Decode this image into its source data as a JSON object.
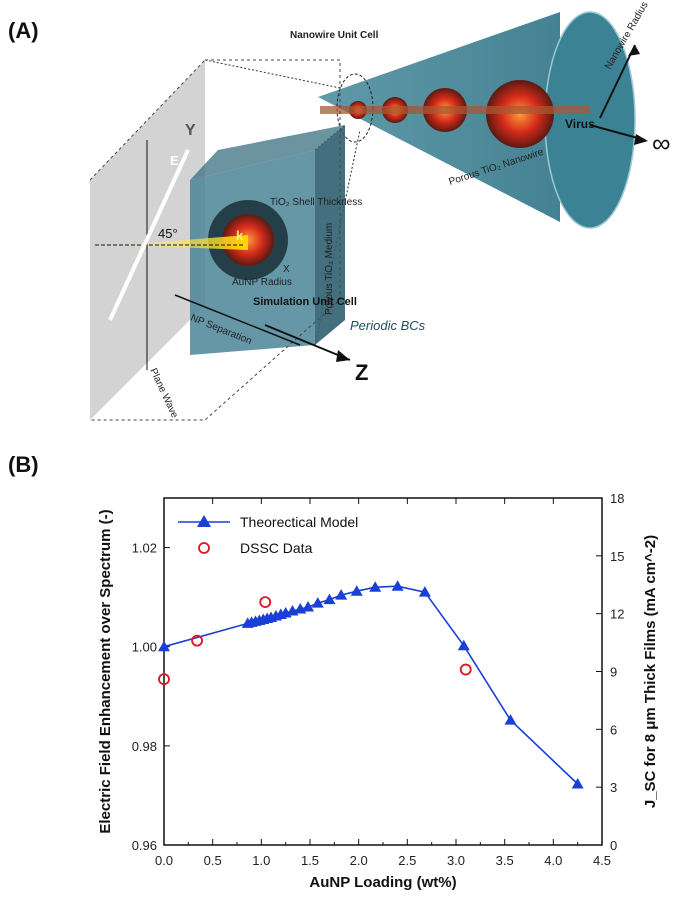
{
  "panels": {
    "a_label": "(A)",
    "b_label": "(B)"
  },
  "diagram": {
    "nanowire_unit_cell": "Nanowire Unit Cell",
    "nanowire_radius": "Nanowire Radius",
    "virus": "Virus",
    "infinity": "∞",
    "porous_nanowire": "Porous TiO₂ Nanowire",
    "shell_thickness": "TiO₂ Shell Thickness",
    "k": "k",
    "e": "E",
    "y": "Y",
    "x": "X",
    "angle": "45°",
    "aunp_radius": "AuNP Radius",
    "simulation_unit_cell": "Simulation Unit Cell",
    "porous_medium": "Porous TiO₂ Medium",
    "periodic_bcs": "Periodic BCs",
    "np_separation": "NP Separation",
    "z": "Z",
    "plane_wave": "Plane Wave"
  },
  "chart_data": {
    "type": "line",
    "xlabel": "AuNP Loading (wt%)",
    "ylabel": "Electric Field Enhancement over Spectrum (-)",
    "y2label": "J_SC for 8 μm Thick Films (mA cm^-2)",
    "xlim": [
      0.0,
      4.5
    ],
    "ylim": [
      0.96,
      1.03
    ],
    "y2lim": [
      0,
      18
    ],
    "x_ticks": [
      "0.0",
      "0.5",
      "1.0",
      "1.5",
      "2.0",
      "2.5",
      "3.0",
      "3.5",
      "4.0",
      "4.5"
    ],
    "y_ticks": [
      "0.96",
      "0.98",
      "1.00",
      "1.02"
    ],
    "y2_ticks": [
      "0",
      "3",
      "6",
      "9",
      "12",
      "15",
      "18"
    ],
    "legend_position": "top-left",
    "series": [
      {
        "name": "Theorectical Model",
        "axis": "left",
        "marker": "triangle",
        "color": "#1a3fd6",
        "x": [
          0.0,
          0.86,
          0.9,
          0.94,
          0.98,
          1.02,
          1.06,
          1.1,
          1.15,
          1.2,
          1.25,
          1.32,
          1.4,
          1.48,
          1.58,
          1.7,
          1.82,
          1.98,
          2.17,
          2.4,
          2.68,
          3.08,
          3.56,
          4.25
        ],
        "y": [
          1.0,
          1.0047,
          1.0049,
          1.0051,
          1.0053,
          1.0055,
          1.0057,
          1.0059,
          1.0062,
          1.0065,
          1.0068,
          1.0072,
          1.0076,
          1.008,
          1.0088,
          1.0095,
          1.0104,
          1.0112,
          1.012,
          1.0122,
          1.011,
          1.0002,
          0.9852,
          0.9723
        ]
      },
      {
        "name": "DSSC Data",
        "axis": "right",
        "marker": "open-circle",
        "color": "#e0141e",
        "x": [
          0.0,
          0.34,
          1.04,
          3.1
        ],
        "y": [
          8.6,
          10.6,
          12.6,
          9.1
        ]
      }
    ]
  }
}
